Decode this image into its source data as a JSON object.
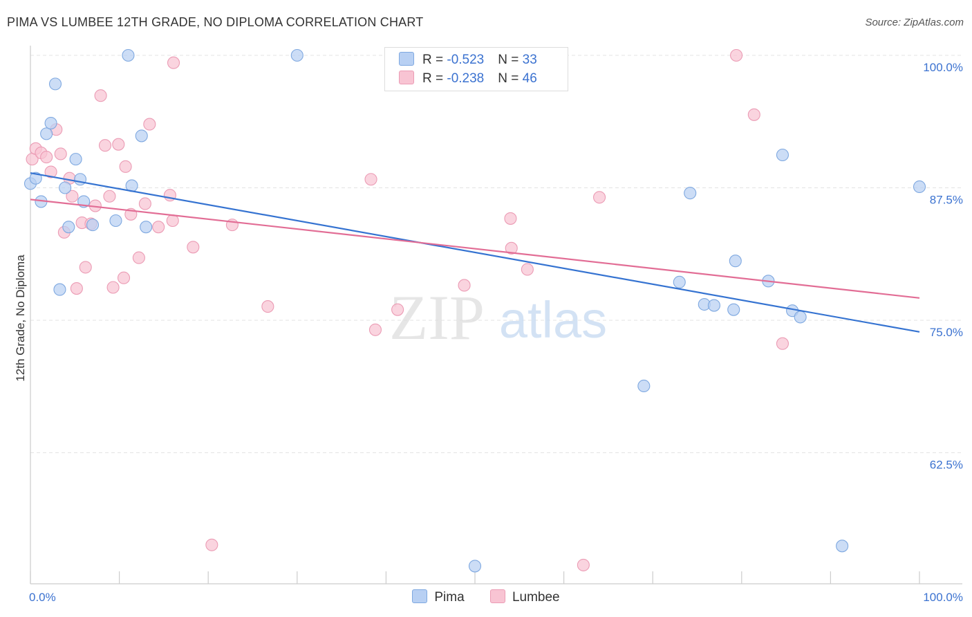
{
  "title": "PIMA VS LUMBEE 12TH GRADE, NO DIPLOMA CORRELATION CHART",
  "source": "Source: ZipAtlas.com",
  "legend": {
    "rows": [
      {
        "r_label": "R = ",
        "r_value": "-0.523",
        "n_label": "N = ",
        "n_value": "33"
      },
      {
        "r_label": "R = ",
        "r_value": "-0.238",
        "n_label": "N = ",
        "n_value": "46"
      }
    ]
  },
  "watermark": {
    "zip": "ZIP",
    "atlas": "atlas"
  },
  "colors": {
    "pima_fill": "#b8d0f3",
    "pima_stroke": "#7ea8e0",
    "pima_line": "#3573d1",
    "lumbee_fill": "#f8c4d3",
    "lumbee_stroke": "#eb9bb4",
    "lumbee_line": "#e26d95",
    "tick_label": "#3b72d0",
    "grid": "#e3e3e3"
  },
  "chart_data": {
    "type": "scatter",
    "title": "PIMA VS LUMBEE 12TH GRADE, NO DIPLOMA CORRELATION CHART",
    "xlabel": "",
    "ylabel": "12th Grade, No Diploma",
    "xlim": [
      0,
      100
    ],
    "ylim": [
      51.5,
      101
    ],
    "x_tick_labels": [
      {
        "value": 0,
        "label": "0.0%"
      },
      {
        "value": 100,
        "label": "100.0%"
      }
    ],
    "y_tick_labels": [
      {
        "value": 100,
        "label": "100.0%"
      },
      {
        "value": 87.5,
        "label": "87.5%"
      },
      {
        "value": 75,
        "label": "75.0%"
      },
      {
        "value": 62.5,
        "label": "62.5%"
      }
    ],
    "series": [
      {
        "name": "Pima",
        "r": -0.523,
        "n": 33,
        "trend": {
          "x": [
            0,
            100
          ],
          "y": [
            88.9,
            73.9
          ]
        },
        "points": [
          {
            "x": 0.0,
            "y": 87.9
          },
          {
            "x": 0.6,
            "y": 88.4
          },
          {
            "x": 1.2,
            "y": 86.2
          },
          {
            "x": 1.8,
            "y": 92.6
          },
          {
            "x": 2.3,
            "y": 93.6
          },
          {
            "x": 2.8,
            "y": 97.3
          },
          {
            "x": 3.3,
            "y": 77.9
          },
          {
            "x": 3.9,
            "y": 87.5
          },
          {
            "x": 4.3,
            "y": 83.8
          },
          {
            "x": 5.1,
            "y": 90.2
          },
          {
            "x": 5.6,
            "y": 88.3
          },
          {
            "x": 6.0,
            "y": 86.2
          },
          {
            "x": 7.0,
            "y": 84.0
          },
          {
            "x": 9.6,
            "y": 84.4
          },
          {
            "x": 11.0,
            "y": 100.0
          },
          {
            "x": 11.4,
            "y": 87.7
          },
          {
            "x": 12.5,
            "y": 92.4
          },
          {
            "x": 13.0,
            "y": 83.8
          },
          {
            "x": 30.0,
            "y": 100.0
          },
          {
            "x": 50.0,
            "y": 51.8
          },
          {
            "x": 69.0,
            "y": 68.8
          },
          {
            "x": 73.0,
            "y": 78.6
          },
          {
            "x": 74.2,
            "y": 87.0
          },
          {
            "x": 75.8,
            "y": 76.5
          },
          {
            "x": 76.9,
            "y": 76.4
          },
          {
            "x": 79.1,
            "y": 76.0
          },
          {
            "x": 79.3,
            "y": 80.6
          },
          {
            "x": 83.0,
            "y": 78.7
          },
          {
            "x": 84.6,
            "y": 90.6
          },
          {
            "x": 85.7,
            "y": 75.9
          },
          {
            "x": 86.6,
            "y": 75.3
          },
          {
            "x": 91.3,
            "y": 53.7
          },
          {
            "x": 100.0,
            "y": 87.6
          }
        ]
      },
      {
        "name": "Lumbee",
        "r": -0.238,
        "n": 46,
        "trend": {
          "x": [
            0,
            100
          ],
          "y": [
            86.4,
            77.1
          ]
        },
        "points": [
          {
            "x": 0.2,
            "y": 90.2
          },
          {
            "x": 0.6,
            "y": 91.2
          },
          {
            "x": 1.2,
            "y": 90.8
          },
          {
            "x": 1.8,
            "y": 90.4
          },
          {
            "x": 2.3,
            "y": 89.0
          },
          {
            "x": 2.9,
            "y": 93.0
          },
          {
            "x": 3.4,
            "y": 90.7
          },
          {
            "x": 3.8,
            "y": 83.3
          },
          {
            "x": 4.4,
            "y": 88.4
          },
          {
            "x": 4.7,
            "y": 86.7
          },
          {
            "x": 5.2,
            "y": 78.0
          },
          {
            "x": 5.8,
            "y": 84.2
          },
          {
            "x": 6.2,
            "y": 80.0
          },
          {
            "x": 6.8,
            "y": 84.1
          },
          {
            "x": 7.3,
            "y": 85.8
          },
          {
            "x": 7.9,
            "y": 96.2
          },
          {
            "x": 8.4,
            "y": 91.5
          },
          {
            "x": 8.9,
            "y": 86.7
          },
          {
            "x": 9.3,
            "y": 78.1
          },
          {
            "x": 9.9,
            "y": 91.6
          },
          {
            "x": 10.5,
            "y": 79.0
          },
          {
            "x": 10.7,
            "y": 89.5
          },
          {
            "x": 11.3,
            "y": 85.0
          },
          {
            "x": 12.2,
            "y": 80.9
          },
          {
            "x": 12.9,
            "y": 86.0
          },
          {
            "x": 13.4,
            "y": 93.5
          },
          {
            "x": 14.4,
            "y": 83.8
          },
          {
            "x": 15.7,
            "y": 86.8
          },
          {
            "x": 16.0,
            "y": 84.4
          },
          {
            "x": 16.1,
            "y": 99.3
          },
          {
            "x": 18.3,
            "y": 81.9
          },
          {
            "x": 20.4,
            "y": 53.8
          },
          {
            "x": 22.7,
            "y": 84.0
          },
          {
            "x": 26.7,
            "y": 76.3
          },
          {
            "x": 38.3,
            "y": 88.3
          },
          {
            "x": 38.8,
            "y": 74.1
          },
          {
            "x": 41.3,
            "y": 76.0
          },
          {
            "x": 48.8,
            "y": 78.3
          },
          {
            "x": 54.0,
            "y": 84.6
          },
          {
            "x": 54.1,
            "y": 81.8
          },
          {
            "x": 55.9,
            "y": 79.8
          },
          {
            "x": 62.2,
            "y": 51.9
          },
          {
            "x": 64.0,
            "y": 86.6
          },
          {
            "x": 79.4,
            "y": 100.0
          },
          {
            "x": 81.4,
            "y": 94.4
          },
          {
            "x": 84.6,
            "y": 72.8
          }
        ]
      }
    ]
  }
}
